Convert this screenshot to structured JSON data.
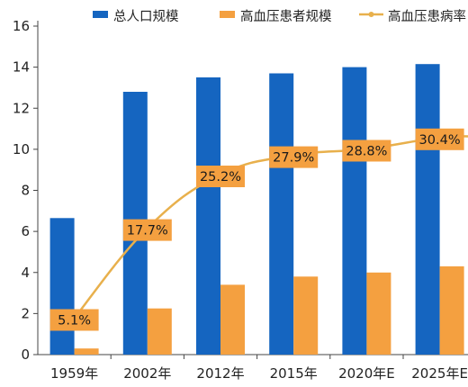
{
  "chart_data": {
    "type": "bar",
    "categories": [
      "1959年",
      "2002年",
      "2012年",
      "2015年",
      "2020年E",
      "2025年E"
    ],
    "series": [
      {
        "name": "总人口规模",
        "kind": "bar",
        "color": "#1565c0",
        "values": [
          6.65,
          12.8,
          13.5,
          13.7,
          14.0,
          14.15
        ]
      },
      {
        "name": "高血压患者规模",
        "kind": "bar",
        "color": "#f4a040",
        "values": [
          0.3,
          2.25,
          3.4,
          3.8,
          4.0,
          4.3
        ]
      },
      {
        "name": "高血压患病率",
        "kind": "line",
        "color": "#e8b04c",
        "values": [
          5.1,
          17.7,
          25.2,
          27.9,
          28.8,
          30.4
        ],
        "data_labels": [
          "5.1%",
          "17.7%",
          "25.2%",
          "27.9%",
          "28.8%",
          "30.4%"
        ]
      }
    ],
    "ylim": [
      0,
      16
    ],
    "yticks": [
      0,
      2,
      4,
      6,
      8,
      10,
      12,
      14,
      16
    ],
    "y2lim": [
      0,
      46
    ],
    "legend_position": "top",
    "grid": false
  }
}
